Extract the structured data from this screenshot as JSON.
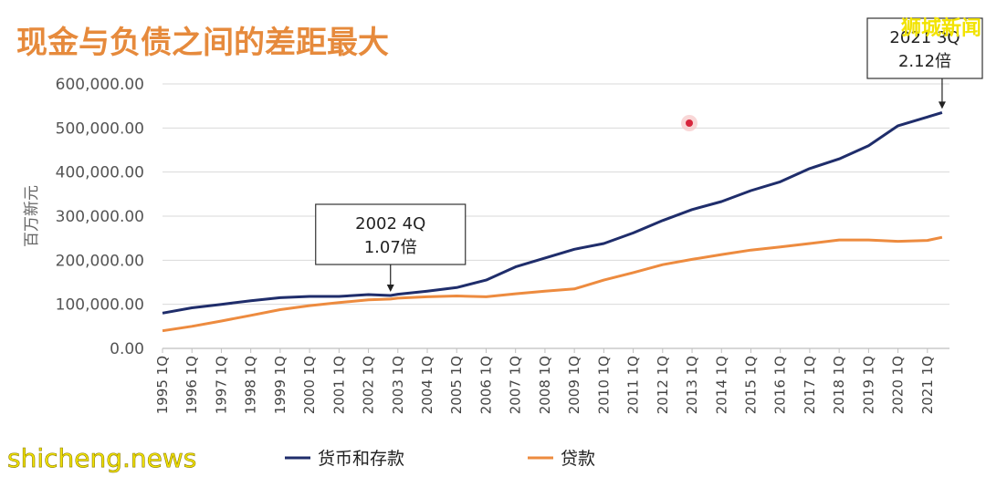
{
  "chart_data": {
    "type": "line",
    "title": "现金与负债之间的差距最大",
    "ylabel": "百万新元",
    "ylim": [
      0,
      600000
    ],
    "yticks": [
      "0.00",
      "100,000.00",
      "200,000.00",
      "300,000.00",
      "400,000.00",
      "500,000.00",
      "600,000.00"
    ],
    "xticks": [
      "1995 1Q",
      "1996 1Q",
      "1997 1Q",
      "1998 1Q",
      "1999 1Q",
      "2000 1Q",
      "2001 1Q",
      "2002 1Q",
      "2003 1Q",
      "2004 1Q",
      "2005 1Q",
      "2006 1Q",
      "2007 1Q",
      "2008 1Q",
      "2009 1Q",
      "2010 1Q",
      "2011 1Q",
      "2012 1Q",
      "2013 1Q",
      "2014 1Q",
      "2015 1Q",
      "2016 1Q",
      "2017 1Q",
      "2018 1Q",
      "2019 1Q",
      "2020 1Q",
      "2021 1Q"
    ],
    "grid": true,
    "legend_position": "bottom",
    "x_years": [
      1995,
      1996,
      1997,
      1998,
      1999,
      2000,
      2001,
      2002,
      2002.75,
      2003,
      2004,
      2005,
      2006,
      2007,
      2008,
      2009,
      2010,
      2011,
      2012,
      2013,
      2014,
      2015,
      2016,
      2017,
      2018,
      2019,
      2020,
      2021,
      2021.5
    ],
    "series": [
      {
        "name": "货币和存款",
        "color": "#1f2d6b",
        "values": [
          80000,
          92000,
          100000,
          108000,
          115000,
          118000,
          118000,
          122000,
          120000,
          123000,
          130000,
          138000,
          155000,
          185000,
          205000,
          225000,
          238000,
          262000,
          290000,
          315000,
          333000,
          358000,
          378000,
          408000,
          430000,
          460000,
          505000,
          525000,
          535000
        ]
      },
      {
        "name": "贷款",
        "color": "#ed8b3f",
        "values": [
          40000,
          50000,
          62000,
          75000,
          88000,
          97000,
          104000,
          110000,
          112000,
          114000,
          117000,
          119000,
          117000,
          124000,
          130000,
          135000,
          155000,
          172000,
          190000,
          202000,
          213000,
          223000,
          230000,
          238000,
          246000,
          246000,
          243000,
          245000,
          252000
        ]
      }
    ],
    "annotations": [
      {
        "lines": [
          "2002 4Q",
          "1.07倍"
        ],
        "x": 2002.75,
        "target_y": 120000
      },
      {
        "lines": [
          "2021 3Q",
          "2.12倍"
        ],
        "x": 2021.5,
        "target_y": 535000
      }
    ]
  },
  "watermarks": {
    "top_right": "狮城新闻",
    "bottom_left": "shicheng.news"
  }
}
